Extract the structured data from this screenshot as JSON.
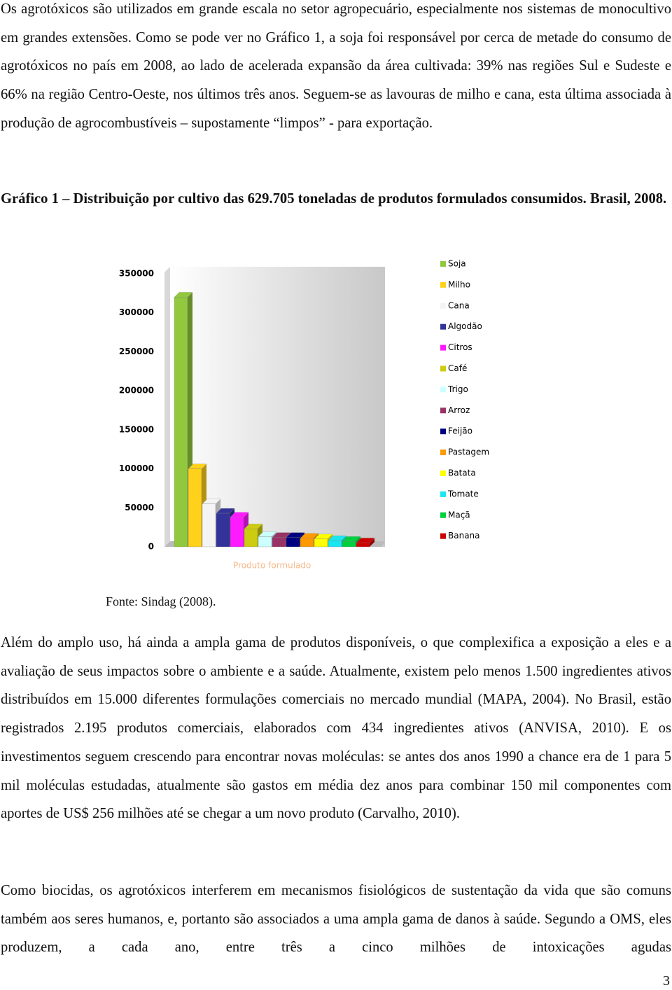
{
  "paragraphs": [
    "Os agrotóxicos são utilizados em grande escala no setor agropecuário, especialmente nos sistemas de monocultivo em grandes extensões. Como se pode ver no Gráfico 1, a soja foi responsável por cerca de metade do consumo de agrotóxicos no país em 2008, ao lado de acelerada expansão da área cultivada: 39% nas regiões Sul e Sudeste e 66% na região Centro-Oeste, nos últimos três anos. Seguem-se as lavouras de milho e cana, esta última associada à produção de agrocombustíveis – supostamente “limpos” - para exportação.",
    "Além do amplo uso, há ainda a ampla gama de produtos disponíveis, o que complexifica a exposição a eles e a avaliação de seus impactos sobre o ambiente e a saúde. Atualmente, existem pelo menos 1.500 ingredientes ativos distribuídos em 15.000 diferentes formulações comerciais no mercado mundial (MAPA, 2004). No Brasil, estão registrados 2.195 produtos comerciais, elaborados com 434 ingredientes ativos (ANVISA, 2010). E os investimentos seguem crescendo para encontrar novas moléculas: se antes dos anos 1990 a chance era de 1 para 5 mil moléculas estudadas, atualmente são gastos em média dez anos para combinar 150 mil componentes com aportes de US$ 256 milhões até se chegar a um novo produto (Carvalho, 2010).",
    "Como biocidas, os agrotóxicos interferem em mecanismos fisiológicos de sustentação da vida que são comuns também aos seres humanos, e, portanto são associados a uma ampla gama de danos à saúde. Segundo a OMS, eles produzem, a cada ano, entre três a cinco milhões de intoxicações agudas"
  ],
  "figure_caption": "Gráfico 1 – Distribuição por cultivo das 629.705 toneladas de produtos formulados consumidos. Brasil, 2008.",
  "chart": {
    "type": "bar",
    "x_label": "Produto formulado",
    "series": [
      {
        "name": "Soja",
        "color": "#92c83e",
        "values": [
          320000
        ]
      },
      {
        "name": "Milho",
        "color": "#ffd11a",
        "values": [
          100000
        ]
      },
      {
        "name": "Cana",
        "color": "#f4f4f4",
        "values": [
          55000
        ]
      },
      {
        "name": "Algodão",
        "color": "#333399",
        "values": [
          43000
        ]
      },
      {
        "name": "Citros",
        "color": "#ff1aff",
        "values": [
          38000
        ]
      },
      {
        "name": "Café",
        "color": "#cccc10",
        "values": [
          23000
        ]
      },
      {
        "name": "Trigo",
        "color": "#ccffff",
        "values": [
          13000
        ]
      },
      {
        "name": "Arroz",
        "color": "#993366",
        "values": [
          12000
        ]
      },
      {
        "name": "Feijão",
        "color": "#000080",
        "values": [
          12000
        ]
      },
      {
        "name": "Pastagem",
        "color": "#ff9900",
        "values": [
          11000
        ]
      },
      {
        "name": "Batata",
        "color": "#ffff00",
        "values": [
          10000
        ]
      },
      {
        "name": "Tomate",
        "color": "#1ae6f0",
        "values": [
          8000
        ]
      },
      {
        "name": "Maçã",
        "color": "#00d040",
        "values": [
          7000
        ]
      },
      {
        "name": "Banana",
        "color": "#cc0000",
        "values": [
          5000
        ]
      }
    ],
    "ylim": [
      0,
      350000
    ],
    "yticks": [
      0,
      50000,
      100000,
      150000,
      200000,
      250000,
      300000,
      350000
    ]
  },
  "source": "Fonte: Sindag (2008).",
  "page_number": 3
}
